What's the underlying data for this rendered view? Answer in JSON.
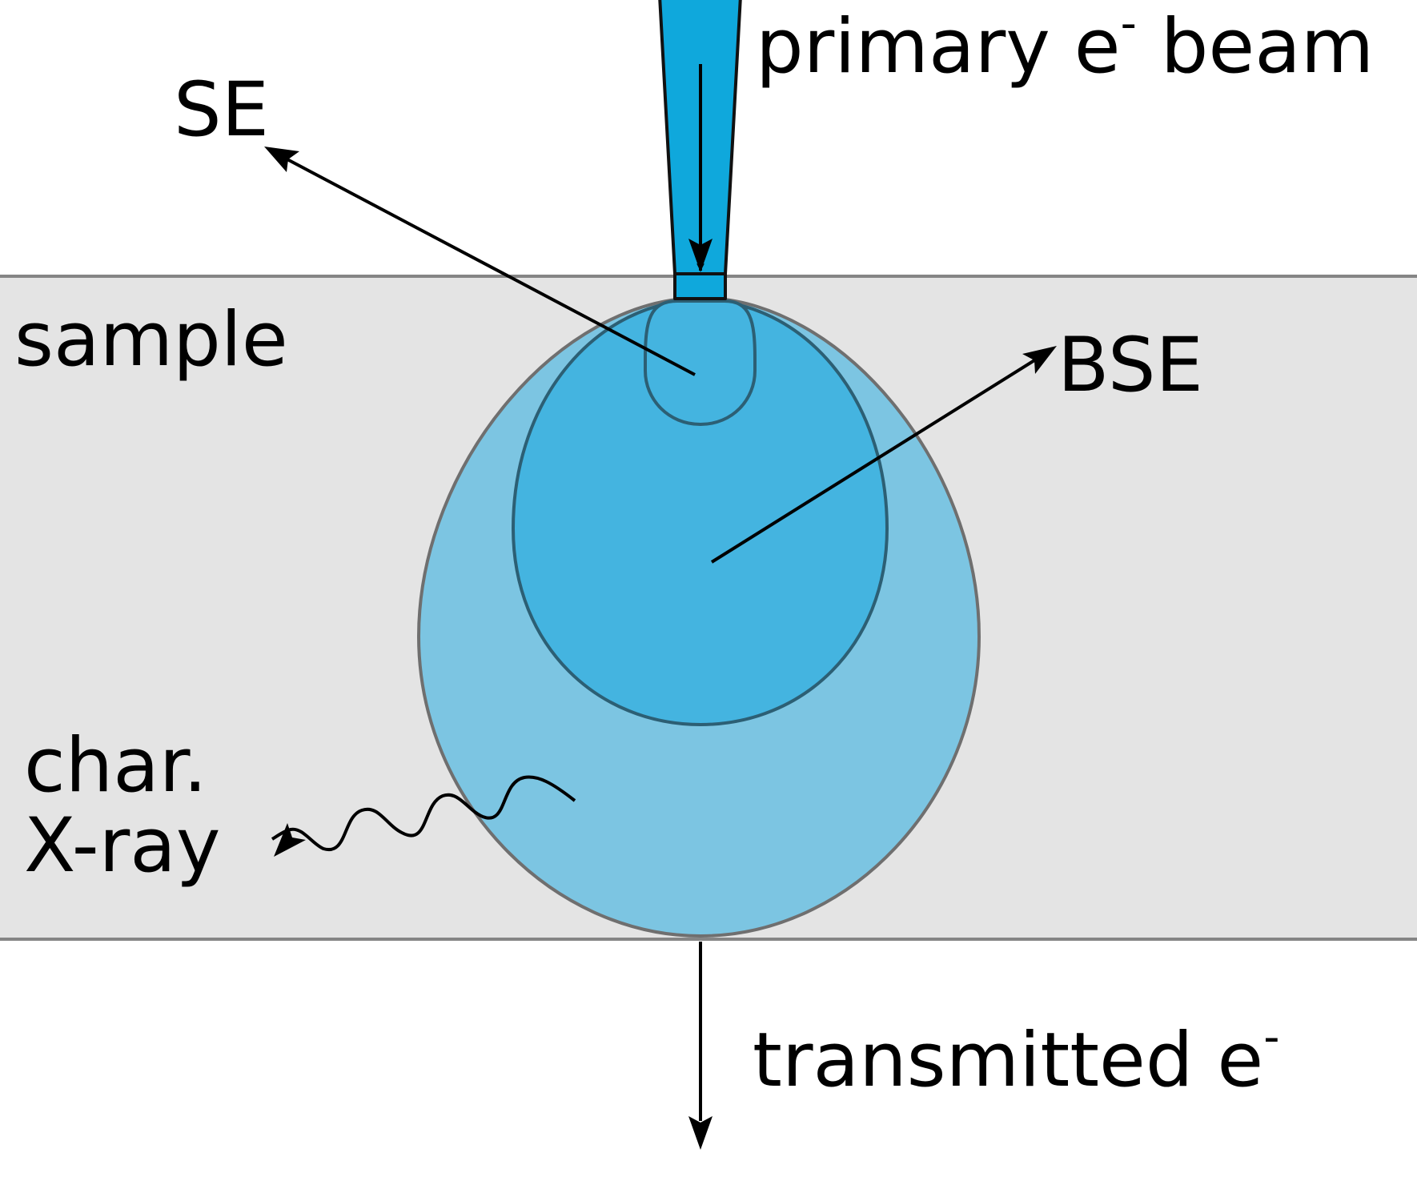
{
  "labels": {
    "primary_beam": "primary e",
    "primary_beam_sup": "-",
    "primary_beam_tail": " beam",
    "se": "SE",
    "sample": "sample",
    "bse": "BSE",
    "char_line1": "char.",
    "char_line2": "X-ray",
    "transmitted": "transmitted e",
    "transmitted_sup": "-"
  },
  "colors": {
    "sample_fill": "#e4e4e4",
    "sample_border": "#858585",
    "beam_fill": "#0fa8dc",
    "bse_volume_fill": "#44b4e0",
    "xray_volume_fill": "#7cc5e2",
    "arrow": "#000000"
  }
}
